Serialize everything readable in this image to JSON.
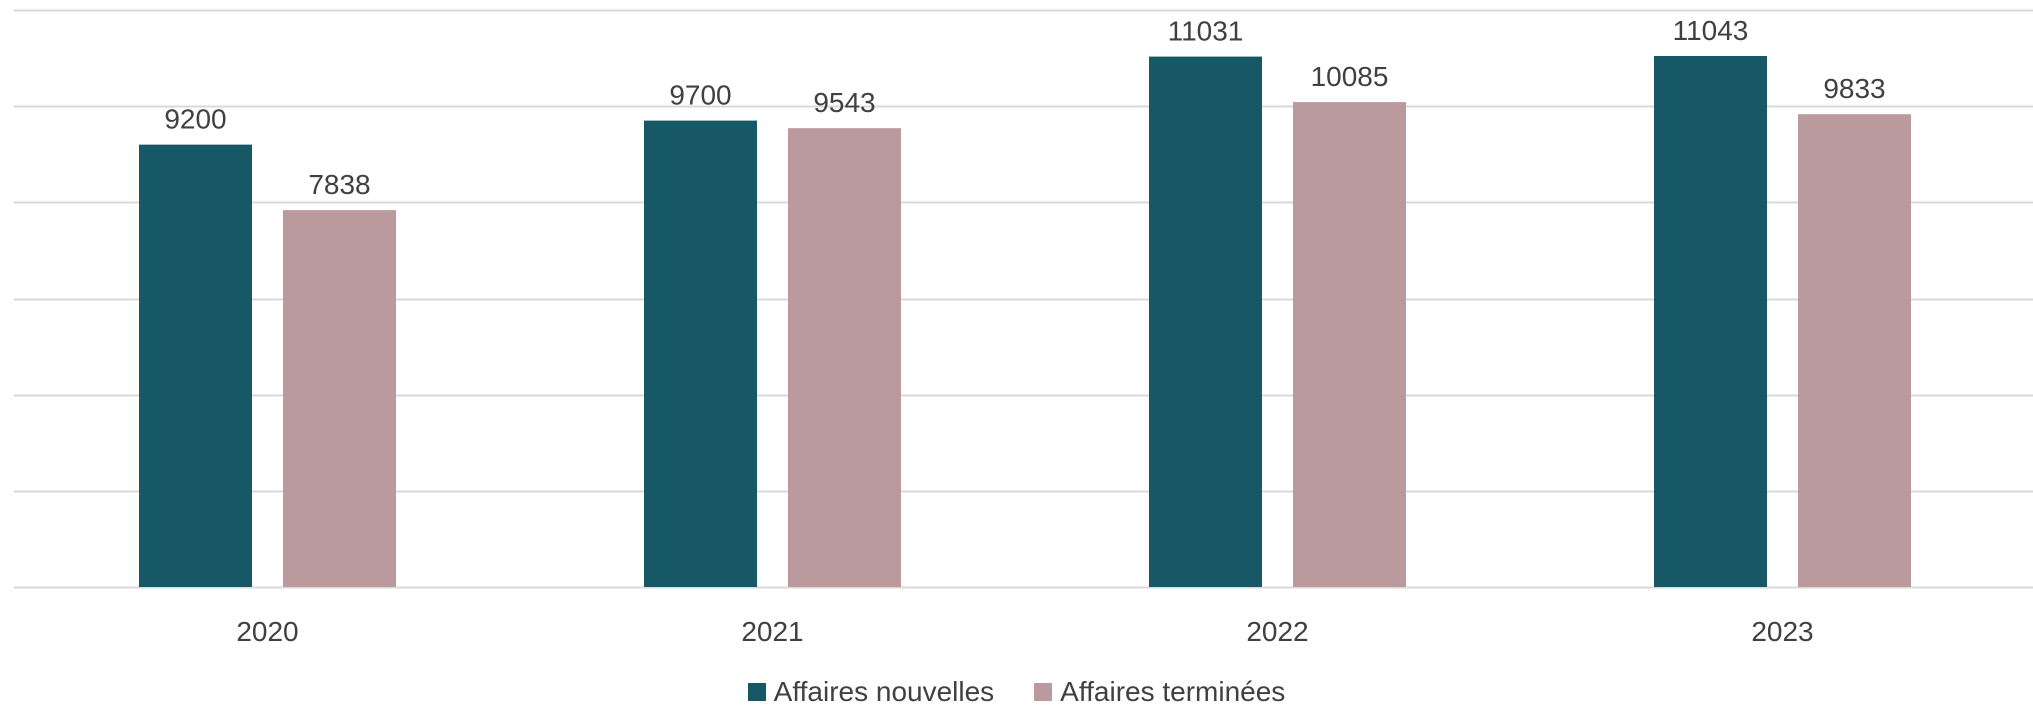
{
  "chart_data": {
    "type": "bar",
    "categories": [
      "2020",
      "2021",
      "2022",
      "2023"
    ],
    "series": [
      {
        "name": "Affaires nouvelles",
        "values": [
          9200,
          9700,
          11031,
          11043
        ],
        "color": "#165866"
      },
      {
        "name": "Affaires terminées",
        "values": [
          7838,
          9543,
          10085,
          9833
        ],
        "color": "#bb9a9e"
      }
    ],
    "ylim": [
      0,
      12000
    ],
    "y_tick_step": 2000,
    "y_tick_labels_shown": false,
    "grid": true,
    "grid_color": "#d9d9d9",
    "legend_position": "bottom",
    "title": "",
    "xlabel": "",
    "ylabel": ""
  }
}
